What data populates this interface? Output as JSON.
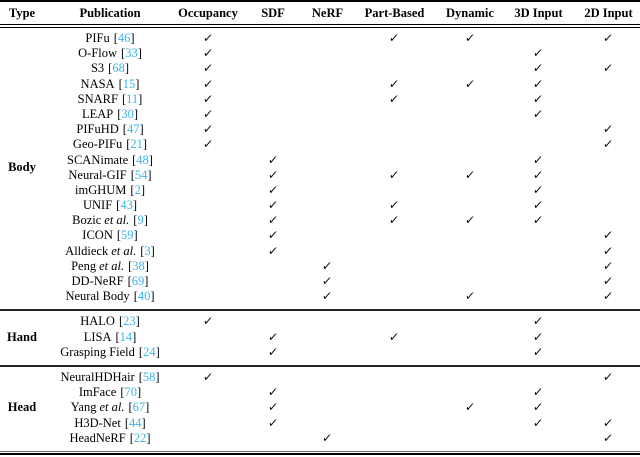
{
  "table": {
    "columns": [
      "Type",
      "Publication",
      "Occupancy",
      "SDF",
      "NeRF",
      "Part-Based",
      "Dynamic",
      "3D Input",
      "2D Input"
    ],
    "check_glyph": "✓",
    "etal_text": "et al.",
    "cite_open": "[",
    "cite_close": "]",
    "colors": {
      "cite": "#3cb4e7",
      "text": "#000000",
      "background": "#ffffff"
    },
    "sections": [
      {
        "label": "Body",
        "rows": [
          {
            "name": "PIFu",
            "etal": false,
            "cite": "46",
            "checks": [
              1,
              0,
              0,
              1,
              1,
              0,
              1
            ]
          },
          {
            "name": "O-Flow",
            "etal": false,
            "cite": "33",
            "checks": [
              1,
              0,
              0,
              0,
              0,
              1,
              0
            ]
          },
          {
            "name": "S3",
            "etal": false,
            "cite": "68",
            "checks": [
              1,
              0,
              0,
              0,
              0,
              1,
              1
            ]
          },
          {
            "name": "NASA",
            "etal": false,
            "cite": "15",
            "checks": [
              1,
              0,
              0,
              1,
              1,
              1,
              0
            ]
          },
          {
            "name": "SNARF",
            "etal": false,
            "cite": "11",
            "checks": [
              1,
              0,
              0,
              1,
              0,
              1,
              0
            ]
          },
          {
            "name": "LEAP",
            "etal": false,
            "cite": "30",
            "checks": [
              1,
              0,
              0,
              0,
              0,
              1,
              0
            ]
          },
          {
            "name": "PIFuHD",
            "etal": false,
            "cite": "47",
            "checks": [
              1,
              0,
              0,
              0,
              0,
              0,
              1
            ]
          },
          {
            "name": "Geo-PIFu",
            "etal": false,
            "cite": "21",
            "checks": [
              1,
              0,
              0,
              0,
              0,
              0,
              1
            ]
          },
          {
            "name": "SCANimate",
            "etal": false,
            "cite": "48",
            "checks": [
              0,
              1,
              0,
              0,
              0,
              1,
              0
            ]
          },
          {
            "name": "Neural-GIF",
            "etal": false,
            "cite": "54",
            "checks": [
              0,
              1,
              0,
              1,
              1,
              1,
              0
            ]
          },
          {
            "name": "imGHUM",
            "etal": false,
            "cite": "2",
            "checks": [
              0,
              1,
              0,
              0,
              0,
              1,
              0
            ]
          },
          {
            "name": "UNIF",
            "etal": false,
            "cite": "43",
            "checks": [
              0,
              1,
              0,
              1,
              0,
              1,
              0
            ]
          },
          {
            "name": "Bozic",
            "etal": true,
            "cite": "9",
            "checks": [
              0,
              1,
              0,
              1,
              1,
              1,
              0
            ]
          },
          {
            "name": "ICON",
            "etal": false,
            "cite": "59",
            "checks": [
              0,
              1,
              0,
              0,
              0,
              0,
              1
            ]
          },
          {
            "name": "Alldieck",
            "etal": true,
            "cite": "3",
            "checks": [
              0,
              1,
              0,
              0,
              0,
              0,
              1
            ]
          },
          {
            "name": "Peng",
            "etal": true,
            "cite": "38",
            "checks": [
              0,
              0,
              1,
              0,
              0,
              0,
              1
            ]
          },
          {
            "name": "DD-NeRF",
            "etal": false,
            "cite": "69",
            "checks": [
              0,
              0,
              1,
              0,
              0,
              0,
              1
            ]
          },
          {
            "name": "Neural Body",
            "etal": false,
            "cite": "40",
            "checks": [
              0,
              0,
              1,
              0,
              1,
              0,
              1
            ]
          }
        ]
      },
      {
        "label": "Hand",
        "rows": [
          {
            "name": "HALO",
            "etal": false,
            "cite": "23",
            "checks": [
              1,
              0,
              0,
              0,
              0,
              1,
              0
            ]
          },
          {
            "name": "LISA",
            "etal": false,
            "cite": "14",
            "checks": [
              0,
              1,
              0,
              1,
              0,
              1,
              0
            ]
          },
          {
            "name": "Grasping Field",
            "etal": false,
            "cite": "24",
            "checks": [
              0,
              1,
              0,
              0,
              0,
              1,
              0
            ]
          }
        ]
      },
      {
        "label": "Head",
        "rows": [
          {
            "name": "NeuralHDHair",
            "etal": false,
            "cite": "58",
            "checks": [
              1,
              0,
              0,
              0,
              0,
              0,
              1
            ]
          },
          {
            "name": "ImFace",
            "etal": false,
            "cite": "70",
            "checks": [
              0,
              1,
              0,
              0,
              0,
              1,
              0
            ]
          },
          {
            "name": "Yang",
            "etal": true,
            "cite": "67",
            "checks": [
              0,
              1,
              0,
              0,
              1,
              1,
              0
            ]
          },
          {
            "name": "H3D-Net",
            "etal": false,
            "cite": "44",
            "checks": [
              0,
              1,
              0,
              0,
              0,
              1,
              1
            ]
          },
          {
            "name": "HeadNeRF",
            "etal": false,
            "cite": "22",
            "checks": [
              0,
              0,
              1,
              0,
              0,
              0,
              1
            ]
          }
        ]
      }
    ]
  }
}
